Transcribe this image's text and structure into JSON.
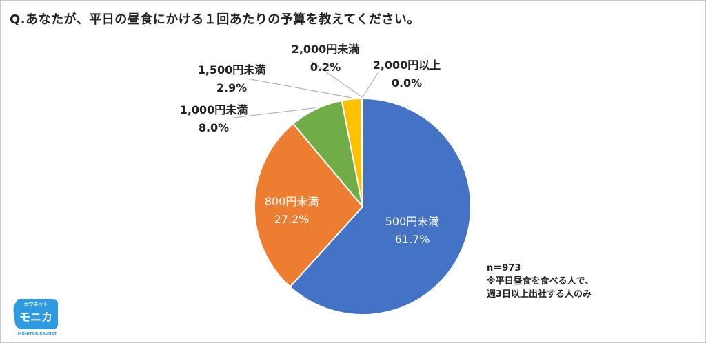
{
  "title": "Q.あなたが、平日の昼食にかける１回あたりの予算を教えてください。",
  "note": {
    "sample": "n＝973",
    "condition_1": "※平日昼食を食べる人で、",
    "condition_2": "週3日以上出社する人のみ"
  },
  "logo": {
    "kana": "カウネット",
    "name": "モニカ",
    "sub": "MONITOR KAUNET"
  },
  "chart_data": {
    "type": "pie",
    "title": "Q.あなたが、平日の昼食にかける１回あたりの予算を教えてください。",
    "start": "12 o'clock, clockwise",
    "slices": [
      {
        "label": "500円未満",
        "value": 61.7,
        "display": "61.7%",
        "color": "#4472C4",
        "label_position": "inside",
        "label_color": "#ffffff"
      },
      {
        "label": "800円未満",
        "value": 27.2,
        "display": "27.2%",
        "color": "#ED7D31",
        "label_position": "inside",
        "label_color": "#ffffff"
      },
      {
        "label": "1,000円未満",
        "value": 8.0,
        "display": "8.0%",
        "color": "#70AD47",
        "label_position": "outside",
        "label_color": "#222222"
      },
      {
        "label": "1,500円未満",
        "value": 2.9,
        "display": "2.9%",
        "color": "#FFC000",
        "label_position": "outside",
        "label_color": "#222222"
      },
      {
        "label": "2,000円未満",
        "value": 0.2,
        "display": "0.2%",
        "color": "#5B9BD5",
        "label_position": "outside",
        "label_color": "#222222"
      },
      {
        "label": "2,000円以上",
        "value": 0.0,
        "display": "0.0%",
        "color": "#A5A5A5",
        "label_position": "outside",
        "label_color": "#222222"
      }
    ]
  }
}
